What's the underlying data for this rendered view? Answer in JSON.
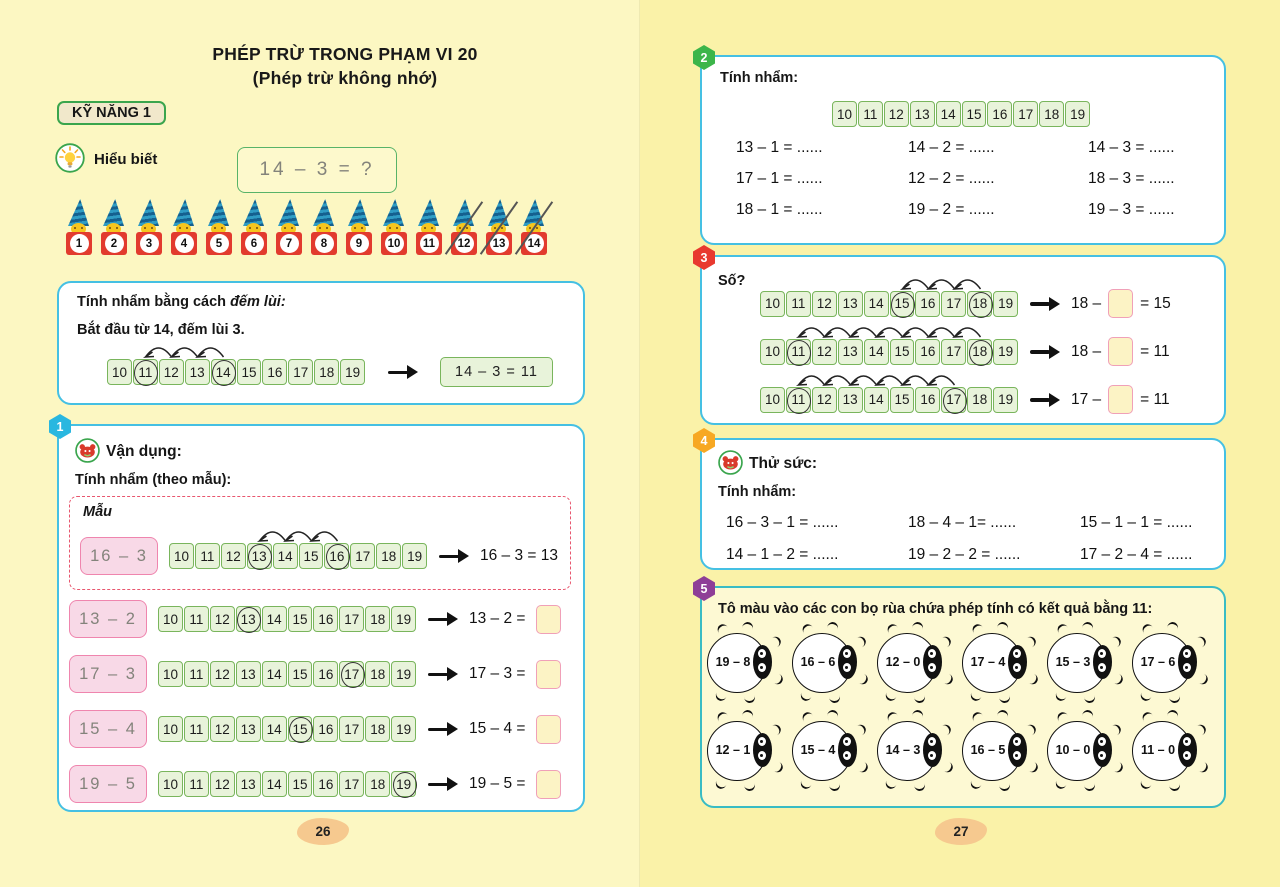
{
  "colors": {
    "panel_border": "#45c0e3",
    "strip_green_bg": "#e8f3da",
    "strip_green_border": "#79b55c",
    "pink_bg": "#f8d9e7",
    "pink_border": "#ef85ae",
    "answer_bg": "#fcf3c5",
    "answer_border": "#f0a0b8",
    "badge_1": "#29b7e0",
    "badge_2": "#3cb54a",
    "badge_3": "#e8392f",
    "badge_4": "#f7a823",
    "badge_5": "#8e3e97",
    "page_tab_bg": "#f6c98f"
  },
  "left_page": {
    "title_line1": "PHÉP TRỪ TRONG PHẠM VI 20",
    "title_line2": "(Phép trừ không nhớ)",
    "skill_badge": "KỸ NĂNG 1",
    "understanding": {
      "label": "Hiểu biết",
      "equation": "14 – 3 = ?"
    },
    "gnomes": {
      "count": 14,
      "crossed": [
        12,
        13,
        14
      ]
    },
    "countback": {
      "line1_normal": "Tính nhẩm bằng cách ",
      "line1_italic": "đếm lùi:",
      "line2": "Bắt đầu từ 14, đếm lùi 3.",
      "strip": {
        "from": 10,
        "to": 19,
        "circled": [
          11,
          14
        ],
        "hop_from": 14,
        "hop_to": 11
      },
      "result": "14 – 3 = 11"
    },
    "section1": {
      "number": "1",
      "heading": "Vận dụng:",
      "subheading": "Tính nhẩm (theo mẫu):",
      "sample_label": "Mẫu",
      "sample": {
        "expression": "16 – 3",
        "strip": {
          "from": 10,
          "to": 19,
          "circled": [
            13,
            16
          ],
          "hop_from": 16,
          "hop_to": 13
        },
        "result": "16 – 3 = 13"
      },
      "rows": [
        {
          "expression": "13 – 2",
          "strip": {
            "from": 10,
            "to": 19,
            "circled": [
              13
            ]
          },
          "equation": "13 – 2 ="
        },
        {
          "expression": "17 – 3",
          "strip": {
            "from": 10,
            "to": 19,
            "circled": [
              17
            ]
          },
          "equation": "17 – 3 ="
        },
        {
          "expression": "15 – 4",
          "strip": {
            "from": 10,
            "to": 19,
            "circled": [
              15
            ]
          },
          "equation": "15 – 4 ="
        },
        {
          "expression": "19 – 5",
          "strip": {
            "from": 10,
            "to": 19,
            "circled": [
              19
            ]
          },
          "equation": "19 – 5 ="
        }
      ]
    },
    "page_number": "26"
  },
  "right_page": {
    "section2": {
      "number": "2",
      "heading": "Tính nhẩm:",
      "strip": {
        "from": 10,
        "to": 19
      },
      "equations": [
        "13 – 1 = ......",
        "14 – 2 = ......",
        "14 – 3 = ......",
        "17 – 1 = ......",
        "12 – 2 = ......",
        "18 – 3 = ......",
        "18 – 1 = ......",
        "19 – 2 = ......",
        "19 – 3 = ......"
      ]
    },
    "section3": {
      "number": "3",
      "heading": "Số?",
      "rows": [
        {
          "strip": {
            "from": 10,
            "to": 19,
            "circled": [
              15,
              18
            ],
            "hop_from": 18,
            "hop_to": 15
          },
          "eq_left": "18 –",
          "eq_right": "= 15"
        },
        {
          "strip": {
            "from": 10,
            "to": 19,
            "circled": [
              11,
              18
            ],
            "hop_from": 18,
            "hop_to": 11
          },
          "eq_left": "18 –",
          "eq_right": "= 11"
        },
        {
          "strip": {
            "from": 10,
            "to": 19,
            "circled": [
              11,
              17
            ],
            "hop_from": 17,
            "hop_to": 11
          },
          "eq_left": "17 –",
          "eq_right": "= 11"
        }
      ]
    },
    "section4": {
      "number": "4",
      "heading": "Thử sức:",
      "subheading": "Tính nhẩm:",
      "equations": [
        "16 – 3 – 1 = ......",
        "18 – 4 – 1= ......",
        "15 – 1 – 1 = ......",
        "14 – 1 – 2 = ......",
        "19 – 2 – 2 = ......",
        "17 – 2 – 4 = ......"
      ]
    },
    "section5": {
      "number": "5",
      "heading": "Tô màu vào các con bọ rùa chứa phép tính có kết quả bằng 11:",
      "ladybugs": [
        "19 – 8",
        "16 – 6",
        "12 – 0",
        "17 – 4",
        "15 – 3",
        "17 – 6",
        "12 – 1",
        "15 – 4",
        "14 – 3",
        "16 – 5",
        "10 – 0",
        "11 – 0"
      ]
    },
    "page_number": "27"
  }
}
